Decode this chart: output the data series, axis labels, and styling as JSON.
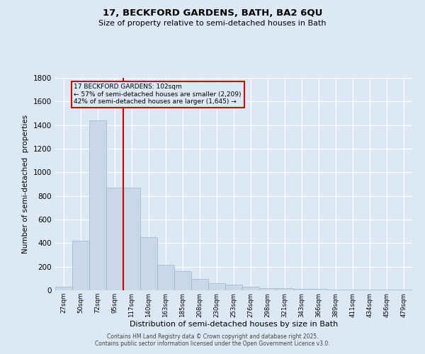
{
  "title1": "17, BECKFORD GARDENS, BATH, BA2 6QU",
  "title2": "Size of property relative to semi-detached houses in Bath",
  "xlabel": "Distribution of semi-detached houses by size in Bath",
  "ylabel": "Number of semi-detached  properties",
  "categories": [
    "27sqm",
    "50sqm",
    "72sqm",
    "95sqm",
    "117sqm",
    "140sqm",
    "163sqm",
    "185sqm",
    "208sqm",
    "230sqm",
    "253sqm",
    "276sqm",
    "298sqm",
    "321sqm",
    "343sqm",
    "366sqm",
    "389sqm",
    "411sqm",
    "434sqm",
    "456sqm",
    "479sqm"
  ],
  "values": [
    30,
    420,
    1440,
    870,
    870,
    450,
    215,
    160,
    95,
    60,
    48,
    30,
    20,
    18,
    13,
    10,
    8,
    8,
    7,
    5,
    5
  ],
  "bar_color": "#c8d8e8",
  "bar_edgecolor": "#9bb5cc",
  "vline_color": "#cc0000",
  "vline_pos": 3.5,
  "annotation_title": "17 BECKFORD GARDENS: 102sqm",
  "annotation_line1": "← 57% of semi-detached houses are smaller (2,209)",
  "annotation_line2": "42% of semi-detached houses are larger (1,645) →",
  "ylim": [
    0,
    1800
  ],
  "yticks": [
    0,
    200,
    400,
    600,
    800,
    1000,
    1200,
    1400,
    1600,
    1800
  ],
  "footer1": "Contains HM Land Registry data © Crown copyright and database right 2025.",
  "footer2": "Contains public sector information licensed under the Open Government Licence v3.0.",
  "bg_color": "#dce9f5",
  "grid_color": "#ffffff"
}
